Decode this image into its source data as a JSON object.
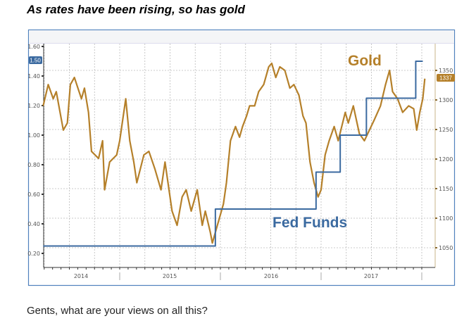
{
  "header": {
    "title": "As rates have been rising, so has gold"
  },
  "footer": {
    "text": "Gents, what are your views on all this?"
  },
  "chart_data": {
    "type": "line",
    "title": "As rates have been rising, so has gold",
    "colors": {
      "gold": "#b5802a",
      "fed": "#3b6aa0",
      "frame": "#4f81bd"
    },
    "x_axis": {
      "range": [
        2014.24,
        2018.05
      ],
      "tick_labels": [
        "2014",
        "2015",
        "2016",
        "2017"
      ],
      "year_boundaries": [
        2015,
        2016,
        2017,
        2018
      ]
    },
    "left_axis": {
      "range": [
        0.15,
        1.62
      ],
      "ticks": [
        0.2,
        0.4,
        0.6,
        0.8,
        1.0,
        1.2,
        1.4,
        1.6
      ],
      "tick_labels": [
        "0.20",
        "0.40",
        "0.60",
        "0.80",
        "1.00",
        "1.20",
        "1.40",
        "1.60"
      ]
    },
    "right_axis": {
      "range": [
        1020,
        1410
      ],
      "ticks": [
        1050,
        1100,
        1150,
        1200,
        1250,
        1300,
        1350
      ],
      "tick_labels": [
        "1050",
        "1100",
        "1150",
        "1200",
        "1250",
        "1300",
        "1350"
      ]
    },
    "grid": true,
    "series": [
      {
        "name": "Gold",
        "axis": "right",
        "label": "Gold",
        "last_value_badge": "1337",
        "points": [
          [
            2014.24,
            1290
          ],
          [
            2014.29,
            1326
          ],
          [
            2014.34,
            1302
          ],
          [
            2014.37,
            1314
          ],
          [
            2014.44,
            1249
          ],
          [
            2014.48,
            1261
          ],
          [
            2014.51,
            1326
          ],
          [
            2014.55,
            1338
          ],
          [
            2014.62,
            1302
          ],
          [
            2014.65,
            1320
          ],
          [
            2014.69,
            1279
          ],
          [
            2014.72,
            1213
          ],
          [
            2014.79,
            1201
          ],
          [
            2014.83,
            1231
          ],
          [
            2014.85,
            1148
          ],
          [
            2014.9,
            1195
          ],
          [
            2014.97,
            1207
          ],
          [
            2015.0,
            1231
          ],
          [
            2015.06,
            1302
          ],
          [
            2015.1,
            1231
          ],
          [
            2015.14,
            1195
          ],
          [
            2015.17,
            1160
          ],
          [
            2015.24,
            1207
          ],
          [
            2015.29,
            1213
          ],
          [
            2015.35,
            1183
          ],
          [
            2015.41,
            1148
          ],
          [
            2015.45,
            1195
          ],
          [
            2015.52,
            1112
          ],
          [
            2015.57,
            1088
          ],
          [
            2015.62,
            1136
          ],
          [
            2015.66,
            1148
          ],
          [
            2015.71,
            1112
          ],
          [
            2015.77,
            1148
          ],
          [
            2015.82,
            1088
          ],
          [
            2015.85,
            1112
          ],
          [
            2015.9,
            1076
          ],
          [
            2015.92,
            1058
          ],
          [
            2015.97,
            1088
          ],
          [
            2016.01,
            1112
          ],
          [
            2016.03,
            1124
          ],
          [
            2016.06,
            1160
          ],
          [
            2016.1,
            1231
          ],
          [
            2016.15,
            1255
          ],
          [
            2016.19,
            1237
          ],
          [
            2016.22,
            1255
          ],
          [
            2016.26,
            1273
          ],
          [
            2016.29,
            1290
          ],
          [
            2016.34,
            1290
          ],
          [
            2016.38,
            1314
          ],
          [
            2016.43,
            1326
          ],
          [
            2016.48,
            1356
          ],
          [
            2016.51,
            1362
          ],
          [
            2016.55,
            1338
          ],
          [
            2016.59,
            1356
          ],
          [
            2016.64,
            1350
          ],
          [
            2016.69,
            1320
          ],
          [
            2016.73,
            1326
          ],
          [
            2016.78,
            1308
          ],
          [
            2016.82,
            1273
          ],
          [
            2016.85,
            1261
          ],
          [
            2016.89,
            1195
          ],
          [
            2016.93,
            1160
          ],
          [
            2016.97,
            1136
          ],
          [
            2017.0,
            1148
          ],
          [
            2017.04,
            1207
          ],
          [
            2017.08,
            1231
          ],
          [
            2017.13,
            1255
          ],
          [
            2017.17,
            1231
          ],
          [
            2017.24,
            1279
          ],
          [
            2017.27,
            1261
          ],
          [
            2017.32,
            1290
          ],
          [
            2017.38,
            1243
          ],
          [
            2017.43,
            1231
          ],
          [
            2017.48,
            1249
          ],
          [
            2017.53,
            1267
          ],
          [
            2017.59,
            1290
          ],
          [
            2017.64,
            1326
          ],
          [
            2017.68,
            1350
          ],
          [
            2017.71,
            1314
          ],
          [
            2017.76,
            1302
          ],
          [
            2017.81,
            1279
          ],
          [
            2017.87,
            1290
          ],
          [
            2017.92,
            1285
          ],
          [
            2017.95,
            1249
          ],
          [
            2017.98,
            1279
          ],
          [
            2018.01,
            1302
          ],
          [
            2018.03,
            1336
          ]
        ]
      },
      {
        "name": "Fed Funds",
        "axis": "left",
        "label": "Fed Funds",
        "last_value_badge": "1.50",
        "step": true,
        "points": [
          [
            2014.24,
            0.25
          ],
          [
            2015.95,
            0.5
          ],
          [
            2016.95,
            0.75
          ],
          [
            2017.19,
            1.0
          ],
          [
            2017.45,
            1.25
          ],
          [
            2017.94,
            1.5
          ],
          [
            2018.01,
            1.5
          ]
        ]
      }
    ]
  }
}
